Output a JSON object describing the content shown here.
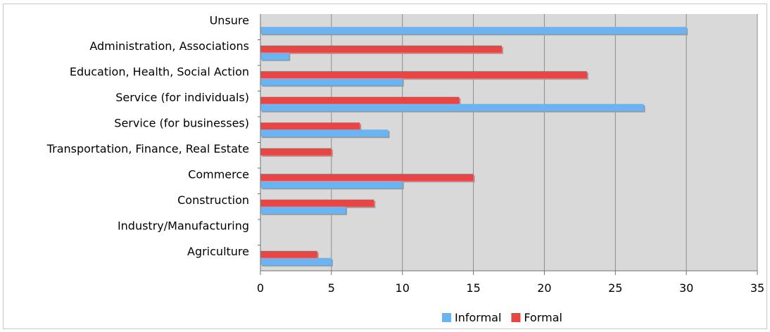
{
  "chart_data": {
    "type": "bar",
    "orientation": "horizontal",
    "categories": [
      "Unsure",
      "Administration, Associations",
      "Education, Health, Social Action",
      "Service (for individuals)",
      "Service (for businesses)",
      "Transportation, Finance, Real Estate",
      "Commerce",
      "Construction",
      "Industry/Manufacturing",
      "Agriculture"
    ],
    "series": [
      {
        "name": "Formal",
        "color": "#e84545",
        "values": [
          0,
          17,
          23,
          14,
          7,
          5,
          15,
          8,
          0,
          4
        ]
      },
      {
        "name": "Informal",
        "color": "#6ab4f4",
        "values": [
          30,
          2,
          10,
          27,
          9,
          0,
          10,
          6,
          0,
          5
        ]
      }
    ],
    "xlim": [
      0,
      35
    ],
    "xticks": [
      "0",
      "5",
      "10",
      "15",
      "20",
      "25",
      "30",
      "35"
    ],
    "grid": true,
    "plot_background": "#d9d9d9",
    "legend": {
      "placement": "bottom",
      "items": [
        {
          "label": "Informal",
          "color": "#6ab4f4"
        },
        {
          "label": "Formal",
          "color": "#e84545"
        }
      ]
    }
  }
}
